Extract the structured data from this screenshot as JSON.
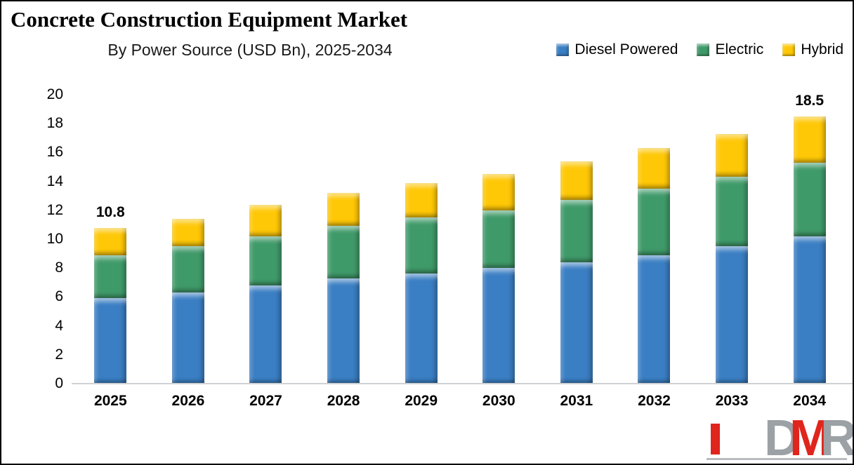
{
  "header": {
    "title": "Concrete Construction Equipment Market",
    "subtitle": "By Power Source (USD Bn), 2025-2034"
  },
  "legend": {
    "items": [
      {
        "label": "Diesel Powered",
        "color": "#3A7EC3"
      },
      {
        "label": "Electric",
        "color": "#3F9A69"
      },
      {
        "label": "Hybrid",
        "color": "#FFC806"
      }
    ]
  },
  "chart_data": {
    "type": "bar",
    "stacked": true,
    "title": "Concrete Construction Equipment Market",
    "subtitle": "By Power Source (USD Bn), 2025-2034",
    "categories": [
      "2025",
      "2026",
      "2027",
      "2028",
      "2029",
      "2030",
      "2031",
      "2032",
      "2033",
      "2034"
    ],
    "series": [
      {
        "name": "Diesel Powered",
        "color": "#3A7EC3",
        "values": [
          5.9,
          6.3,
          6.8,
          7.3,
          7.6,
          8.0,
          8.4,
          8.9,
          9.5,
          10.2
        ]
      },
      {
        "name": "Electric",
        "color": "#3F9A69",
        "values": [
          3.0,
          3.2,
          3.4,
          3.6,
          3.9,
          4.0,
          4.3,
          4.6,
          4.8,
          5.1
        ]
      },
      {
        "name": "Hybrid",
        "color": "#FFC806",
        "values": [
          1.9,
          1.9,
          2.2,
          2.3,
          2.4,
          2.5,
          2.7,
          2.8,
          3.0,
          3.2
        ]
      }
    ],
    "totals": [
      10.8,
      11.4,
      12.4,
      13.2,
      13.9,
      14.5,
      15.4,
      16.3,
      17.3,
      18.5
    ],
    "data_labels": {
      "first": "10.8",
      "last": "18.5"
    },
    "xlabel": "",
    "ylabel": "",
    "ylim": [
      0,
      20
    ],
    "yticks": [
      0,
      2,
      4,
      6,
      8,
      10,
      12,
      14,
      16,
      18,
      20
    ],
    "grid": false,
    "legend_position": "top-right"
  },
  "logo": {
    "letters": [
      {
        "char": "D",
        "color": "#9BA1A5"
      },
      {
        "char": "M",
        "color": "#E0251C"
      },
      {
        "char": "R",
        "color": "#9BA1A5"
      }
    ],
    "accent_bar_color": "#E0251C"
  }
}
